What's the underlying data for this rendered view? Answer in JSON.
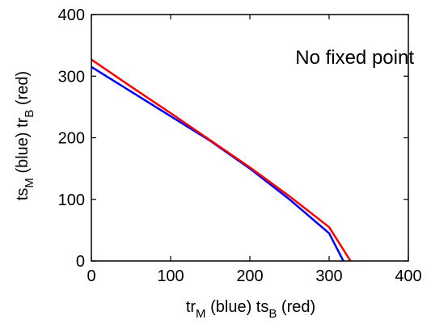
{
  "chart_data": {
    "type": "line",
    "title": "",
    "annotation": "No fixed point",
    "xlabel": {
      "main": "tr",
      "sub1": "M",
      "mid": " (blue)  ts",
      "sub2": "B",
      "tail": " (red)"
    },
    "ylabel": {
      "main": "ts",
      "sub1": "M",
      "mid": " (blue)  tr",
      "sub2": "B",
      "tail": " (red)"
    },
    "xlim": [
      0,
      400
    ],
    "ylim": [
      0,
      400
    ],
    "xticks": [
      "0",
      "100",
      "200",
      "300",
      "400"
    ],
    "yticks": [
      "0",
      "100",
      "200",
      "300",
      "400"
    ],
    "grid": false,
    "series": [
      {
        "color": "#0000ff",
        "x": [
          0,
          50,
          100,
          150,
          200,
          250,
          300,
          318
        ],
        "y": [
          315,
          275,
          235,
          195,
          150,
          100,
          45,
          0
        ]
      },
      {
        "color": "#ff0000",
        "x": [
          0,
          50,
          100,
          150,
          200,
          250,
          300,
          327
        ],
        "y": [
          327,
          283,
          240,
          196,
          152,
          105,
          55,
          0
        ]
      }
    ]
  }
}
